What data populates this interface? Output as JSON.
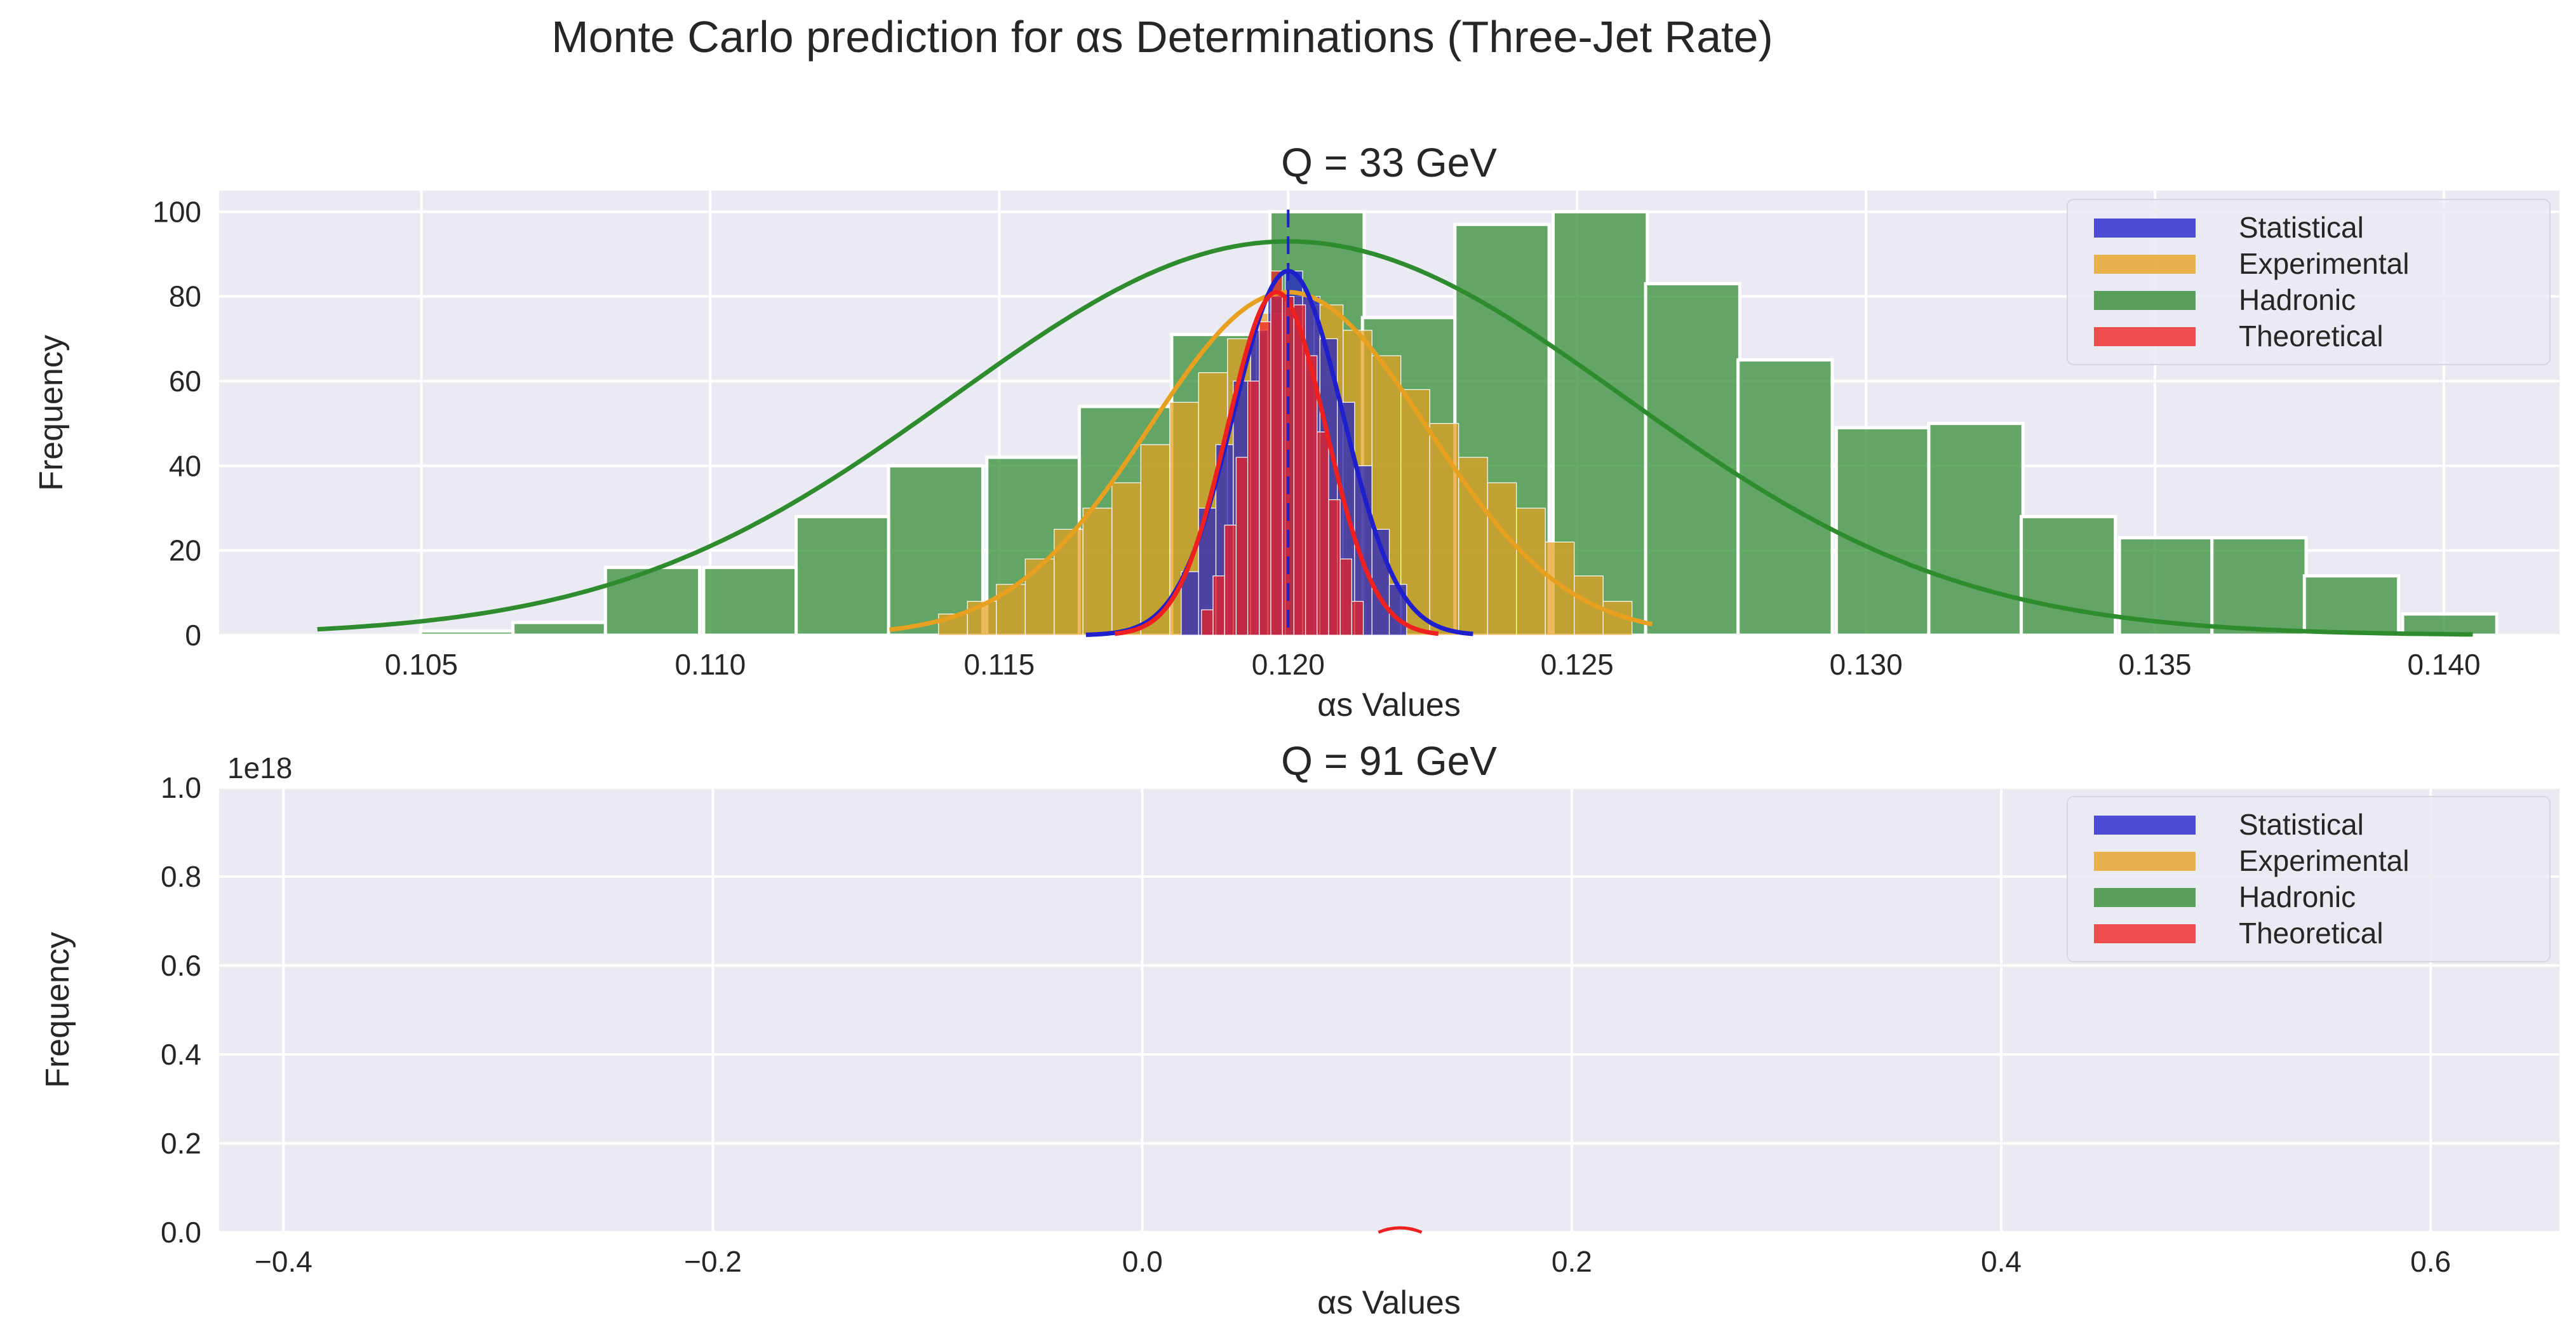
{
  "figure": {
    "suptitle": "Monte Carlo prediction for αs Determinations (Three-Jet Rate)"
  },
  "chart_data": [
    {
      "type": "bar",
      "title": "Q = 33 GeV",
      "xlabel": "αs Values",
      "ylabel": "Frequency",
      "xlim": [
        0.1015,
        0.142
      ],
      "ylim": [
        0,
        105
      ],
      "xticks": [
        0.105,
        0.11,
        0.115,
        0.12,
        0.125,
        0.13,
        0.135,
        0.14
      ],
      "xtick_labels": [
        "0.105",
        "0.110",
        "0.115",
        "0.120",
        "0.125",
        "0.130",
        "0.135",
        "0.140"
      ],
      "yticks": [
        0,
        20,
        40,
        60,
        80,
        100
      ],
      "ytick_labels": [
        "0",
        "20",
        "40",
        "60",
        "80",
        "100"
      ],
      "grid": true,
      "legend_position": "top-right",
      "mean_line_x": 0.12,
      "series": [
        {
          "name": "Hadronic",
          "color": "#2e8b2e",
          "bin_width": 0.00163,
          "bins": [
            {
              "x": 0.1058,
              "y": 1
            },
            {
              "x": 0.1074,
              "y": 3
            },
            {
              "x": 0.109,
              "y": 16
            },
            {
              "x": 0.1107,
              "y": 16
            },
            {
              "x": 0.1123,
              "y": 28
            },
            {
              "x": 0.1139,
              "y": 40
            },
            {
              "x": 0.1156,
              "y": 42
            },
            {
              "x": 0.1172,
              "y": 54
            },
            {
              "x": 0.1188,
              "y": 71
            },
            {
              "x": 0.1205,
              "y": 100
            },
            {
              "x": 0.1221,
              "y": 75
            },
            {
              "x": 0.1237,
              "y": 97
            },
            {
              "x": 0.1254,
              "y": 100
            },
            {
              "x": 0.127,
              "y": 83
            },
            {
              "x": 0.1286,
              "y": 65
            },
            {
              "x": 0.1303,
              "y": 49
            },
            {
              "x": 0.1319,
              "y": 50
            },
            {
              "x": 0.1335,
              "y": 28
            },
            {
              "x": 0.1352,
              "y": 23
            },
            {
              "x": 0.1368,
              "y": 23
            },
            {
              "x": 0.1384,
              "y": 14
            },
            {
              "x": 0.1401,
              "y": 5
            }
          ],
          "kde": {
            "mean": 0.12,
            "sd": 0.0058,
            "peak": 93,
            "xmin": 0.1032,
            "xmax": 0.1405
          }
        },
        {
          "name": "Experimental",
          "color": "#e8a020",
          "bin_width": 0.0005,
          "bins": [
            {
              "x": 0.1142,
              "y": 5
            },
            {
              "x": 0.1147,
              "y": 8
            },
            {
              "x": 0.1152,
              "y": 12
            },
            {
              "x": 0.1157,
              "y": 18
            },
            {
              "x": 0.1162,
              "y": 25
            },
            {
              "x": 0.1167,
              "y": 30
            },
            {
              "x": 0.1172,
              "y": 36
            },
            {
              "x": 0.1177,
              "y": 45
            },
            {
              "x": 0.1182,
              "y": 55
            },
            {
              "x": 0.1187,
              "y": 62
            },
            {
              "x": 0.1192,
              "y": 70
            },
            {
              "x": 0.1197,
              "y": 76
            },
            {
              "x": 0.1202,
              "y": 80
            },
            {
              "x": 0.1207,
              "y": 78
            },
            {
              "x": 0.1212,
              "y": 72
            },
            {
              "x": 0.1217,
              "y": 66
            },
            {
              "x": 0.1222,
              "y": 58
            },
            {
              "x": 0.1227,
              "y": 50
            },
            {
              "x": 0.1232,
              "y": 42
            },
            {
              "x": 0.1237,
              "y": 36
            },
            {
              "x": 0.1242,
              "y": 30
            },
            {
              "x": 0.1247,
              "y": 22
            },
            {
              "x": 0.1252,
              "y": 14
            },
            {
              "x": 0.1257,
              "y": 8
            }
          ],
          "kde": {
            "mean": 0.12,
            "sd": 0.0024,
            "peak": 81,
            "xmin": 0.1131,
            "xmax": 0.1263
          }
        },
        {
          "name": "Statistical",
          "color": "#1f1fcc",
          "bin_width": 0.0003,
          "bins": [
            {
              "x": 0.1183,
              "y": 15
            },
            {
              "x": 0.1186,
              "y": 30
            },
            {
              "x": 0.1189,
              "y": 45
            },
            {
              "x": 0.1192,
              "y": 60
            },
            {
              "x": 0.1195,
              "y": 72
            },
            {
              "x": 0.1198,
              "y": 80
            },
            {
              "x": 0.1201,
              "y": 86
            },
            {
              "x": 0.1204,
              "y": 80
            },
            {
              "x": 0.1207,
              "y": 70
            },
            {
              "x": 0.121,
              "y": 55
            },
            {
              "x": 0.1213,
              "y": 40
            },
            {
              "x": 0.1216,
              "y": 25
            },
            {
              "x": 0.1219,
              "y": 12
            }
          ],
          "kde": {
            "mean": 0.12,
            "sd": 0.00095,
            "peak": 86,
            "xmin": 0.1165,
            "xmax": 0.1232
          }
        },
        {
          "name": "Theoretical",
          "color": "#ee2020",
          "bin_width": 0.0002,
          "bins": [
            {
              "x": 0.1186,
              "y": 6
            },
            {
              "x": 0.1188,
              "y": 14
            },
            {
              "x": 0.119,
              "y": 26
            },
            {
              "x": 0.1192,
              "y": 42
            },
            {
              "x": 0.1194,
              "y": 60
            },
            {
              "x": 0.1196,
              "y": 74
            },
            {
              "x": 0.1198,
              "y": 86
            },
            {
              "x": 0.12,
              "y": 80
            },
            {
              "x": 0.1202,
              "y": 78
            },
            {
              "x": 0.1204,
              "y": 66
            },
            {
              "x": 0.1206,
              "y": 48
            },
            {
              "x": 0.1208,
              "y": 32
            },
            {
              "x": 0.121,
              "y": 18
            },
            {
              "x": 0.1212,
              "y": 8
            }
          ],
          "kde": {
            "mean": 0.1198,
            "sd": 0.00085,
            "peak": 81,
            "xmin": 0.117,
            "xmax": 0.1226
          }
        }
      ]
    },
    {
      "type": "bar",
      "title": "Q = 91 GeV",
      "xlabel": "αs Values",
      "ylabel": "Frequency",
      "xlim": [
        -0.43,
        0.66
      ],
      "ylim": [
        0,
        1.0
      ],
      "offset_text": "1e18",
      "xticks": [
        -0.4,
        -0.2,
        0.0,
        0.2,
        0.4,
        0.6
      ],
      "xtick_labels": [
        "−0.4",
        "−0.2",
        "0.0",
        "0.2",
        "0.4",
        "0.6"
      ],
      "yticks": [
        0.0,
        0.2,
        0.4,
        0.6,
        0.8,
        1.0
      ],
      "ytick_labels": [
        "0.0",
        "0.2",
        "0.4",
        "0.6",
        "0.8",
        "1.0"
      ],
      "grid": true,
      "legend_position": "top-right",
      "series": [
        {
          "name": "Statistical",
          "color": "#1f1fcc",
          "bins": []
        },
        {
          "name": "Experimental",
          "color": "#e8a020",
          "bins": []
        },
        {
          "name": "Hadronic",
          "color": "#2e8b2e",
          "bins": []
        },
        {
          "name": "Theoretical",
          "color": "#ee2020",
          "bins": []
        }
      ],
      "residual_mark": {
        "x": 0.12,
        "color": "#ee2020"
      }
    }
  ],
  "legend_order": [
    "Statistical",
    "Experimental",
    "Hadronic",
    "Theoretical"
  ]
}
